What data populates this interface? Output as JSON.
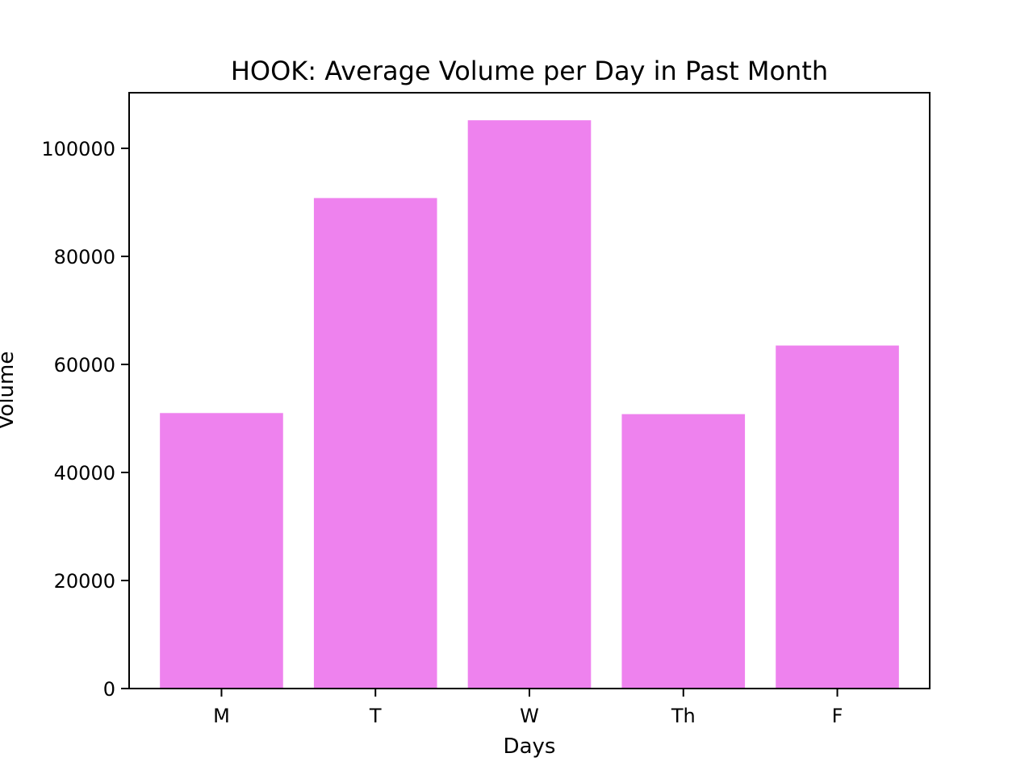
{
  "chart_data": {
    "type": "bar",
    "title": "HOOK: Average Volume per Day in Past Month",
    "xlabel": "Days",
    "ylabel": "Volume",
    "categories": [
      "M",
      "T",
      "W",
      "Th",
      "F"
    ],
    "values": [
      51000,
      90800,
      105200,
      50800,
      63500
    ],
    "ylim": [
      0,
      110300
    ],
    "yticks": [
      0,
      20000,
      40000,
      60000,
      80000,
      100000
    ],
    "grid": false,
    "bar_color": "#ee82ee"
  }
}
